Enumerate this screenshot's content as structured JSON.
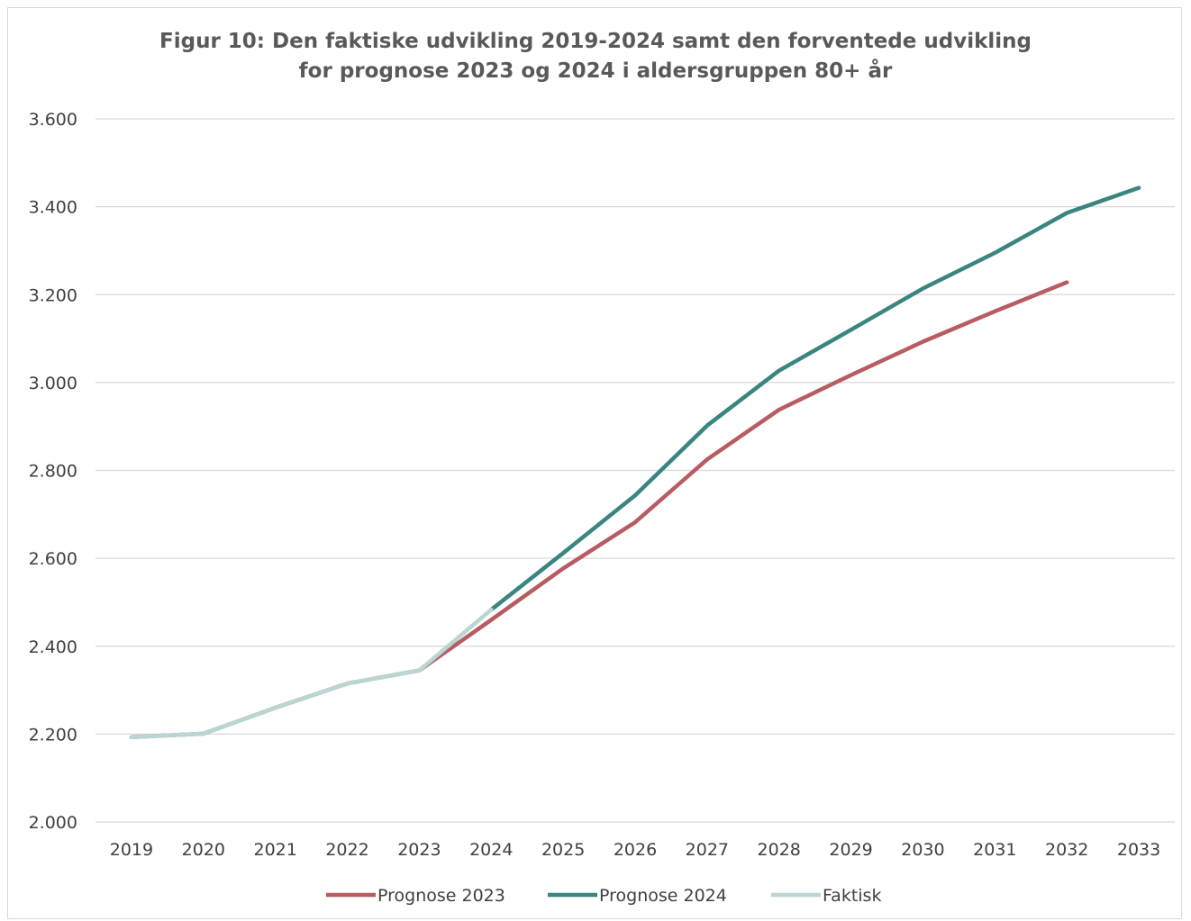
{
  "chart_data": {
    "type": "line",
    "title_lines": [
      "Figur 10: Den faktiske udvikling 2019-2024 samt den forventede udvikling",
      "for prognose 2023 og 2024 i aldersgruppen 80+ år"
    ],
    "xlabel": "",
    "ylabel": "",
    "x": [
      2019,
      2020,
      2021,
      2022,
      2023,
      2024,
      2025,
      2026,
      2027,
      2028,
      2029,
      2030,
      2031,
      2032,
      2033
    ],
    "x_tick_labels": [
      "2019",
      "2020",
      "2021",
      "2022",
      "2023",
      "2024",
      "2025",
      "2026",
      "2027",
      "2028",
      "2029",
      "2030",
      "2031",
      "2032",
      "2033"
    ],
    "ylim": [
      2000,
      3600
    ],
    "y_ticks": [
      2000,
      2200,
      2400,
      2600,
      2800,
      3000,
      3200,
      3400,
      3600
    ],
    "y_tick_labels": [
      "2.000",
      "2.200",
      "2.400",
      "2.600",
      "2.800",
      "3.000",
      "3.200",
      "3.400",
      "3.600"
    ],
    "grid": true,
    "legend_position": "bottom",
    "series": [
      {
        "name": "Prognose 2023",
        "color": "#b85c62",
        "values": [
          2193,
          2201,
          2260,
          2315,
          2345,
          2460,
          2577,
          2682,
          2825,
          2938,
          3017,
          3093,
          3162,
          3228,
          null
        ]
      },
      {
        "name": "Prognose 2024",
        "color": "#3a857f",
        "values": [
          null,
          null,
          null,
          null,
          null,
          2483,
          2612,
          2743,
          2902,
          3027,
          3120,
          3214,
          3295,
          3386,
          3443
        ]
      },
      {
        "name": "Faktisk",
        "color": "#b8d6d2",
        "values": [
          2193,
          2201,
          2260,
          2315,
          2345,
          2483,
          null,
          null,
          null,
          null,
          null,
          null,
          null,
          null,
          null
        ]
      }
    ]
  }
}
